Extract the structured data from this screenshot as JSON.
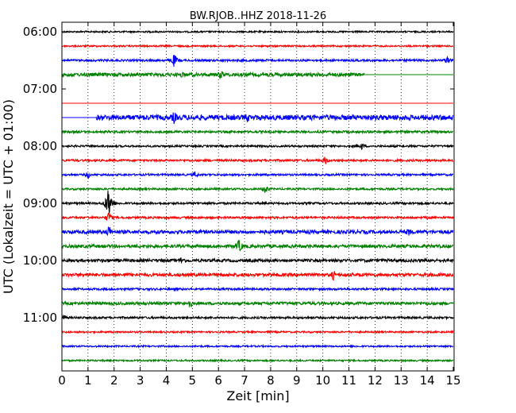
{
  "chart_data": {
    "type": "line",
    "title": "BW.RJOB..HHZ 2018-11-26",
    "xlabel": "Zeit  [min]",
    "ylabel": "UTC (Lokalzeit = UTC + 01:00)",
    "xlim": [
      0,
      15
    ],
    "x_ticks": [
      "0",
      "1",
      "2",
      "3",
      "4",
      "5",
      "6",
      "7",
      "8",
      "9",
      "10",
      "11",
      "12",
      "13",
      "14",
      "15"
    ],
    "y_ticks": [
      "06:00",
      "07:00",
      "08:00",
      "09:00",
      "10:00",
      "11:00"
    ],
    "grid": "vertical dotted",
    "colors": [
      "#000000",
      "#ff0000",
      "#0000ff",
      "#008000"
    ],
    "series": [
      {
        "start": "06:00",
        "color": "#000000",
        "amplitude": 1.0,
        "data_from_min": 0,
        "data_to_min": 15,
        "events": []
      },
      {
        "start": "06:15",
        "color": "#ff0000",
        "amplitude": 1.0,
        "data_from_min": 0,
        "data_to_min": 15,
        "events": []
      },
      {
        "start": "06:30",
        "color": "#0000ff",
        "amplitude": 1.3,
        "data_from_min": 0,
        "data_to_min": 15,
        "events": [
          {
            "t": 4.3,
            "amp": 9
          },
          {
            "t": 14.8,
            "amp": 7
          }
        ]
      },
      {
        "start": "06:45",
        "color": "#008000",
        "amplitude": 2.2,
        "data_from_min": 0,
        "data_to_min": 11.6,
        "events": [
          {
            "t": 6.1,
            "amp": 7
          },
          {
            "t": 4.6,
            "amp": 5
          }
        ]
      },
      {
        "start": "07:15",
        "color": "#ff0000",
        "amplitude": 1.0,
        "data_from_min": 0,
        "data_to_min": 0,
        "events": []
      },
      {
        "start": "07:30",
        "color": "#0000ff",
        "amplitude": 3.2,
        "data_from_min": 1.3,
        "data_to_min": 15,
        "events": [
          {
            "t": 4.3,
            "amp": 9
          },
          {
            "t": 7.1,
            "amp": 7
          }
        ]
      },
      {
        "start": "07:45",
        "color": "#008000",
        "amplitude": 1.4,
        "data_from_min": 0,
        "data_to_min": 15,
        "events": []
      },
      {
        "start": "08:00",
        "color": "#000000",
        "amplitude": 1.2,
        "data_from_min": 0,
        "data_to_min": 15,
        "events": [
          {
            "t": 11.5,
            "amp": 5
          }
        ]
      },
      {
        "start": "08:15",
        "color": "#ff0000",
        "amplitude": 1.3,
        "data_from_min": 0,
        "data_to_min": 15,
        "events": [
          {
            "t": 10.1,
            "amp": 6
          }
        ]
      },
      {
        "start": "08:30",
        "color": "#0000ff",
        "amplitude": 1.2,
        "data_from_min": 0,
        "data_to_min": 15,
        "events": [
          {
            "t": 1.0,
            "amp": 5
          },
          {
            "t": 5.1,
            "amp": 5
          }
        ]
      },
      {
        "start": "08:45",
        "color": "#008000",
        "amplitude": 1.2,
        "data_from_min": 0,
        "data_to_min": 15,
        "events": [
          {
            "t": 7.8,
            "amp": 7
          }
        ]
      },
      {
        "start": "09:00",
        "color": "#000000",
        "amplitude": 1.3,
        "data_from_min": 0,
        "data_to_min": 15,
        "events": [
          {
            "t": 1.8,
            "amp": 22
          }
        ]
      },
      {
        "start": "09:15",
        "color": "#ff0000",
        "amplitude": 1.3,
        "data_from_min": 0,
        "data_to_min": 15,
        "events": [
          {
            "t": 1.8,
            "amp": 8
          }
        ]
      },
      {
        "start": "09:30",
        "color": "#0000ff",
        "amplitude": 2.2,
        "data_from_min": 0,
        "data_to_min": 15,
        "events": [
          {
            "t": 1.8,
            "amp": 9
          },
          {
            "t": 13.3,
            "amp": 6
          }
        ]
      },
      {
        "start": "09:45",
        "color": "#008000",
        "amplitude": 2.0,
        "data_from_min": 0,
        "data_to_min": 15,
        "events": [
          {
            "t": 6.8,
            "amp": 10
          }
        ]
      },
      {
        "start": "10:00",
        "color": "#000000",
        "amplitude": 1.8,
        "data_from_min": 0,
        "data_to_min": 15,
        "events": [
          {
            "t": 4.6,
            "amp": 6
          }
        ]
      },
      {
        "start": "10:15",
        "color": "#ff0000",
        "amplitude": 2.0,
        "data_from_min": 0,
        "data_to_min": 15,
        "events": [
          {
            "t": 10.4,
            "amp": 7
          }
        ]
      },
      {
        "start": "10:30",
        "color": "#0000ff",
        "amplitude": 1.3,
        "data_from_min": 0,
        "data_to_min": 15,
        "events": []
      },
      {
        "start": "10:45",
        "color": "#008000",
        "amplitude": 1.8,
        "data_from_min": 0,
        "data_to_min": 15,
        "events": [
          {
            "t": 4.9,
            "amp": 7
          }
        ]
      },
      {
        "start": "11:00",
        "color": "#000000",
        "amplitude": 1.3,
        "data_from_min": 0,
        "data_to_min": 15,
        "events": [
          {
            "t": 0.1,
            "amp": 4
          }
        ]
      },
      {
        "start": "11:15",
        "color": "#ff0000",
        "amplitude": 1.0,
        "data_from_min": 0,
        "data_to_min": 15,
        "events": []
      },
      {
        "start": "11:30",
        "color": "#0000ff",
        "amplitude": 1.0,
        "data_from_min": 0,
        "data_to_min": 15,
        "events": []
      },
      {
        "start": "11:45",
        "color": "#008000",
        "amplitude": 1.0,
        "data_from_min": 0,
        "data_to_min": 15,
        "events": []
      }
    ]
  }
}
